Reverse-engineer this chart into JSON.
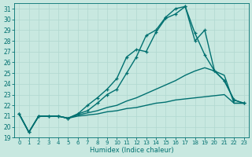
{
  "xlabel": "Humidex (Indice chaleur)",
  "ylabel": "",
  "bg_color": "#c8e8e0",
  "grid_color": "#b0d8d0",
  "line_color": "#007070",
  "xlim": [
    -0.5,
    23.5
  ],
  "ylim": [
    19,
    31.5
  ],
  "yticks": [
    19,
    20,
    21,
    22,
    23,
    24,
    25,
    26,
    27,
    28,
    29,
    30,
    31
  ],
  "xticks": [
    0,
    1,
    2,
    3,
    4,
    5,
    6,
    7,
    8,
    9,
    10,
    11,
    12,
    13,
    14,
    15,
    16,
    17,
    18,
    19,
    20,
    21,
    22,
    23
  ],
  "lines": [
    {
      "x": [
        0,
        1,
        2,
        3,
        4,
        5,
        6,
        7,
        8,
        9,
        10,
        11,
        12,
        13,
        14,
        15,
        16,
        17,
        18,
        19,
        20,
        21,
        22,
        23
      ],
      "y": [
        21.2,
        19.5,
        21.0,
        21.0,
        21.0,
        20.8,
        21.0,
        21.1,
        21.2,
        21.4,
        21.5,
        21.7,
        21.8,
        22.0,
        22.2,
        22.3,
        22.5,
        22.6,
        22.7,
        22.8,
        22.9,
        23.0,
        22.2,
        22.2
      ],
      "marker": null,
      "linewidth": 1.0
    },
    {
      "x": [
        0,
        1,
        2,
        3,
        4,
        5,
        6,
        7,
        8,
        9,
        10,
        11,
        12,
        13,
        14,
        15,
        16,
        17,
        18,
        19,
        20,
        21,
        22,
        23
      ],
      "y": [
        21.2,
        19.5,
        21.0,
        21.0,
        21.0,
        20.8,
        21.1,
        21.3,
        21.5,
        21.8,
        22.0,
        22.4,
        22.7,
        23.1,
        23.5,
        23.9,
        24.3,
        24.8,
        25.2,
        25.5,
        25.2,
        24.8,
        22.2,
        22.2
      ],
      "marker": null,
      "linewidth": 1.0
    },
    {
      "x": [
        0,
        1,
        2,
        3,
        4,
        5,
        6,
        7,
        8,
        9,
        10,
        11,
        12,
        13,
        14,
        15,
        16,
        17,
        18,
        19,
        20,
        21,
        22,
        23
      ],
      "y": [
        21.2,
        19.5,
        21.0,
        21.0,
        21.0,
        20.8,
        21.2,
        22.0,
        22.7,
        23.5,
        24.5,
        26.5,
        27.2,
        27.0,
        28.8,
        30.1,
        30.5,
        31.2,
        28.7,
        26.7,
        25.2,
        24.3,
        22.5,
        22.2
      ],
      "marker": "+",
      "linewidth": 1.0
    },
    {
      "x": [
        0,
        1,
        2,
        3,
        4,
        5,
        6,
        7,
        8,
        9,
        10,
        11,
        12,
        13,
        14,
        15,
        16,
        17,
        18,
        19,
        20,
        21,
        22,
        23
      ],
      "y": [
        21.2,
        19.5,
        21.0,
        21.0,
        21.0,
        20.8,
        21.2,
        21.5,
        22.2,
        23.0,
        23.5,
        25.0,
        26.5,
        28.5,
        29.0,
        30.2,
        31.0,
        31.2,
        28.0,
        29.0,
        25.2,
        24.3,
        22.5,
        22.2
      ],
      "marker": "+",
      "linewidth": 1.0
    }
  ]
}
